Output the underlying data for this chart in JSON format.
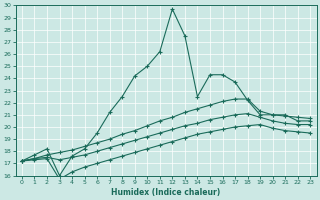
{
  "xlabel": "Humidex (Indice chaleur)",
  "bg_color": "#cce8e4",
  "grid_color": "#b0d0cc",
  "line_color": "#1a6b5a",
  "xlim": [
    -0.5,
    23.5
  ],
  "ylim": [
    16,
    30
  ],
  "xticks": [
    0,
    1,
    2,
    3,
    4,
    5,
    6,
    7,
    8,
    9,
    10,
    11,
    12,
    13,
    14,
    15,
    16,
    17,
    18,
    19,
    20,
    21,
    22,
    23
  ],
  "yticks": [
    16,
    17,
    18,
    19,
    20,
    21,
    22,
    23,
    24,
    25,
    26,
    27,
    28,
    29,
    30
  ],
  "line1_x": [
    0,
    1,
    2,
    3,
    4,
    5,
    6,
    7,
    8,
    9,
    10,
    11,
    12,
    13,
    14,
    15,
    16,
    17,
    18,
    19,
    20,
    21,
    22,
    23
  ],
  "line1_y": [
    17.2,
    17.7,
    18.2,
    16.0,
    17.6,
    18.2,
    19.5,
    21.2,
    22.5,
    24.2,
    25.0,
    26.2,
    29.7,
    27.5,
    22.5,
    24.3,
    24.3,
    23.7,
    22.2,
    21.0,
    21.0,
    21.0,
    20.5,
    20.5
  ],
  "line2_x": [
    0,
    1,
    2,
    3,
    4,
    5,
    6,
    7,
    8,
    9,
    10,
    11,
    12,
    13,
    14,
    15,
    16,
    17,
    18,
    19,
    20,
    21,
    22,
    23
  ],
  "line2_y": [
    17.2,
    17.4,
    17.7,
    17.9,
    18.1,
    18.4,
    18.7,
    19.0,
    19.4,
    19.7,
    20.1,
    20.5,
    20.8,
    21.2,
    21.5,
    21.8,
    22.1,
    22.3,
    22.3,
    21.3,
    21.0,
    20.9,
    20.8,
    20.7
  ],
  "line3_x": [
    0,
    1,
    2,
    3,
    4,
    5,
    6,
    7,
    8,
    9,
    10,
    11,
    12,
    13,
    14,
    15,
    16,
    17,
    18,
    19,
    20,
    21,
    22,
    23
  ],
  "line3_y": [
    17.2,
    17.4,
    17.5,
    17.3,
    17.5,
    17.7,
    18.0,
    18.3,
    18.6,
    18.9,
    19.2,
    19.5,
    19.8,
    20.1,
    20.3,
    20.6,
    20.8,
    21.0,
    21.1,
    20.8,
    20.5,
    20.3,
    20.2,
    20.2
  ],
  "line4_x": [
    0,
    1,
    2,
    3,
    4,
    5,
    6,
    7,
    8,
    9,
    10,
    11,
    12,
    13,
    14,
    15,
    16,
    17,
    18,
    19,
    20,
    21,
    22,
    23
  ],
  "line4_y": [
    17.2,
    17.3,
    17.4,
    15.7,
    16.3,
    16.7,
    17.0,
    17.3,
    17.6,
    17.9,
    18.2,
    18.5,
    18.8,
    19.1,
    19.4,
    19.6,
    19.8,
    20.0,
    20.1,
    20.2,
    19.9,
    19.7,
    19.6,
    19.5
  ]
}
